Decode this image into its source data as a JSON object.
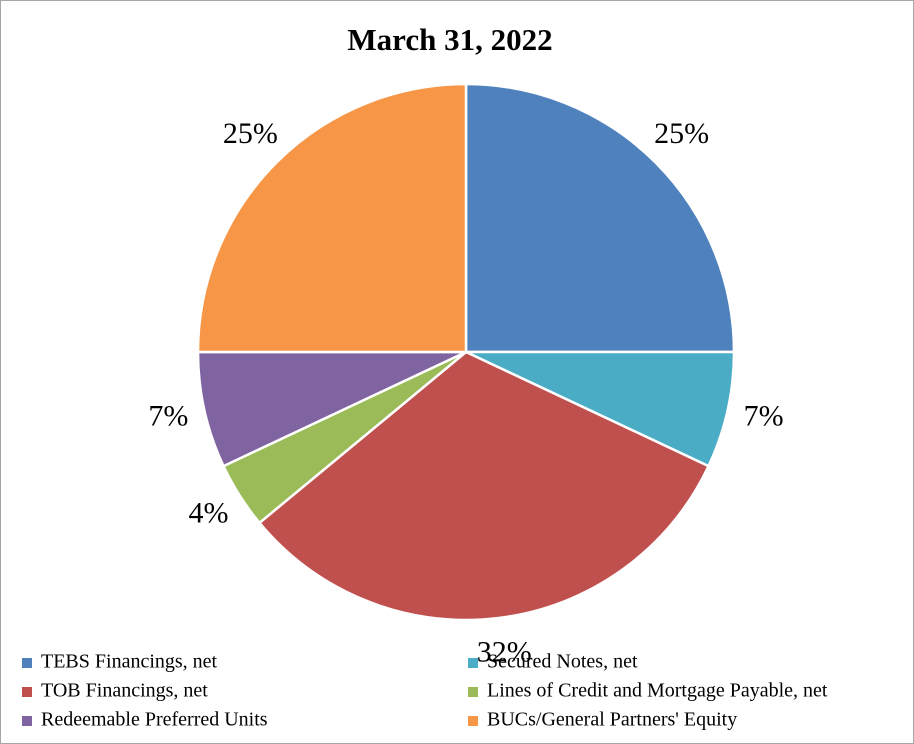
{
  "chart_data": {
    "type": "pie",
    "title": "March 31, 2022",
    "categories": [
      "TEBS Financings, net",
      "Secured Notes, net",
      "TOB Financings, net",
      "Lines of Credit and Mortgage Payable, net",
      "Redeemable Preferred Units",
      "BUCs/General Partners' Equity"
    ],
    "values": [
      25,
      7,
      32,
      4,
      7,
      25
    ],
    "value_labels": [
      "25%",
      "7%",
      "32%",
      "4%",
      "7%",
      "25%"
    ],
    "colors": [
      "#4f81bd",
      "#4bacc6",
      "#c0504d",
      "#9bbb59",
      "#8064a2",
      "#f79646"
    ]
  }
}
